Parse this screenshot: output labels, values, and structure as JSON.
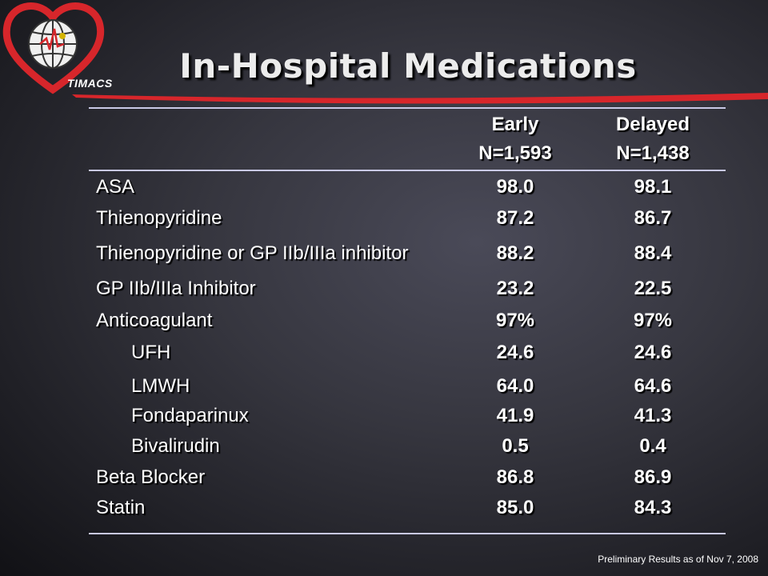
{
  "title": "In-Hospital Medications",
  "logo_text": "TIMACS",
  "columns": {
    "early": {
      "label": "Early",
      "n": "N=1,593"
    },
    "delayed": {
      "label": "Delayed",
      "n": "N=1,438"
    }
  },
  "rows": [
    {
      "label": "ASA",
      "early": "98.0",
      "delayed": "98.1"
    },
    {
      "label": "Thienopyridine",
      "early": "87.2",
      "delayed": "86.7"
    },
    {
      "label": "Thienopyridine or GP IIb/IIIa inhibitor",
      "early": "88.2",
      "delayed": "88.4"
    },
    {
      "label": "GP IIb/IIIa Inhibitor",
      "early": "23.2",
      "delayed": "22.5"
    },
    {
      "label": "Anticoagulant",
      "early": "97%",
      "delayed": "97%"
    },
    {
      "label": "UFH",
      "early": "24.6",
      "delayed": "24.6"
    },
    {
      "label": "LMWH",
      "early": "64.0",
      "delayed": "64.6"
    },
    {
      "label": "Fondaparinux",
      "early": "41.9",
      "delayed": "41.3"
    },
    {
      "label": "Bivalirudin",
      "early": "0.5",
      "delayed": "0.4"
    },
    {
      "label": "Beta Blocker",
      "early": "86.8",
      "delayed": "86.9"
    },
    {
      "label": "Statin",
      "early": "85.0",
      "delayed": "84.3"
    }
  ],
  "footer": "Preliminary Results as of Nov 7, 2008",
  "colors": {
    "accent_red": "#d7262b",
    "rule": "#c9c9e6"
  }
}
